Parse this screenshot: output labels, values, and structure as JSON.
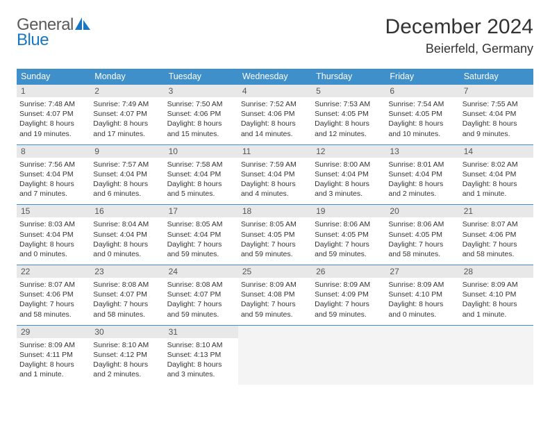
{
  "logo": {
    "general": "General",
    "blue": "Blue"
  },
  "title": "December 2024",
  "location": "Beierfeld, Germany",
  "colors": {
    "header_bg": "#3f8fcb",
    "header_text": "#ffffff",
    "daynum_bg": "#e8e8e8",
    "row_border": "#3f8fcb",
    "empty_bg": "#f4f4f4",
    "text": "#333333",
    "logo_gray": "#5a5a5a",
    "logo_blue": "#1976c4"
  },
  "weekdays": [
    "Sunday",
    "Monday",
    "Tuesday",
    "Wednesday",
    "Thursday",
    "Friday",
    "Saturday"
  ],
  "weeks": [
    [
      {
        "n": "1",
        "sr": "Sunrise: 7:48 AM",
        "ss": "Sunset: 4:07 PM",
        "dl": "Daylight: 8 hours and 19 minutes."
      },
      {
        "n": "2",
        "sr": "Sunrise: 7:49 AM",
        "ss": "Sunset: 4:07 PM",
        "dl": "Daylight: 8 hours and 17 minutes."
      },
      {
        "n": "3",
        "sr": "Sunrise: 7:50 AM",
        "ss": "Sunset: 4:06 PM",
        "dl": "Daylight: 8 hours and 15 minutes."
      },
      {
        "n": "4",
        "sr": "Sunrise: 7:52 AM",
        "ss": "Sunset: 4:06 PM",
        "dl": "Daylight: 8 hours and 14 minutes."
      },
      {
        "n": "5",
        "sr": "Sunrise: 7:53 AM",
        "ss": "Sunset: 4:05 PM",
        "dl": "Daylight: 8 hours and 12 minutes."
      },
      {
        "n": "6",
        "sr": "Sunrise: 7:54 AM",
        "ss": "Sunset: 4:05 PM",
        "dl": "Daylight: 8 hours and 10 minutes."
      },
      {
        "n": "7",
        "sr": "Sunrise: 7:55 AM",
        "ss": "Sunset: 4:04 PM",
        "dl": "Daylight: 8 hours and 9 minutes."
      }
    ],
    [
      {
        "n": "8",
        "sr": "Sunrise: 7:56 AM",
        "ss": "Sunset: 4:04 PM",
        "dl": "Daylight: 8 hours and 7 minutes."
      },
      {
        "n": "9",
        "sr": "Sunrise: 7:57 AM",
        "ss": "Sunset: 4:04 PM",
        "dl": "Daylight: 8 hours and 6 minutes."
      },
      {
        "n": "10",
        "sr": "Sunrise: 7:58 AM",
        "ss": "Sunset: 4:04 PM",
        "dl": "Daylight: 8 hours and 5 minutes."
      },
      {
        "n": "11",
        "sr": "Sunrise: 7:59 AM",
        "ss": "Sunset: 4:04 PM",
        "dl": "Daylight: 8 hours and 4 minutes."
      },
      {
        "n": "12",
        "sr": "Sunrise: 8:00 AM",
        "ss": "Sunset: 4:04 PM",
        "dl": "Daylight: 8 hours and 3 minutes."
      },
      {
        "n": "13",
        "sr": "Sunrise: 8:01 AM",
        "ss": "Sunset: 4:04 PM",
        "dl": "Daylight: 8 hours and 2 minutes."
      },
      {
        "n": "14",
        "sr": "Sunrise: 8:02 AM",
        "ss": "Sunset: 4:04 PM",
        "dl": "Daylight: 8 hours and 1 minute."
      }
    ],
    [
      {
        "n": "15",
        "sr": "Sunrise: 8:03 AM",
        "ss": "Sunset: 4:04 PM",
        "dl": "Daylight: 8 hours and 0 minutes."
      },
      {
        "n": "16",
        "sr": "Sunrise: 8:04 AM",
        "ss": "Sunset: 4:04 PM",
        "dl": "Daylight: 8 hours and 0 minutes."
      },
      {
        "n": "17",
        "sr": "Sunrise: 8:05 AM",
        "ss": "Sunset: 4:04 PM",
        "dl": "Daylight: 7 hours and 59 minutes."
      },
      {
        "n": "18",
        "sr": "Sunrise: 8:05 AM",
        "ss": "Sunset: 4:05 PM",
        "dl": "Daylight: 7 hours and 59 minutes."
      },
      {
        "n": "19",
        "sr": "Sunrise: 8:06 AM",
        "ss": "Sunset: 4:05 PM",
        "dl": "Daylight: 7 hours and 59 minutes."
      },
      {
        "n": "20",
        "sr": "Sunrise: 8:06 AM",
        "ss": "Sunset: 4:05 PM",
        "dl": "Daylight: 7 hours and 58 minutes."
      },
      {
        "n": "21",
        "sr": "Sunrise: 8:07 AM",
        "ss": "Sunset: 4:06 PM",
        "dl": "Daylight: 7 hours and 58 minutes."
      }
    ],
    [
      {
        "n": "22",
        "sr": "Sunrise: 8:07 AM",
        "ss": "Sunset: 4:06 PM",
        "dl": "Daylight: 7 hours and 58 minutes."
      },
      {
        "n": "23",
        "sr": "Sunrise: 8:08 AM",
        "ss": "Sunset: 4:07 PM",
        "dl": "Daylight: 7 hours and 58 minutes."
      },
      {
        "n": "24",
        "sr": "Sunrise: 8:08 AM",
        "ss": "Sunset: 4:07 PM",
        "dl": "Daylight: 7 hours and 59 minutes."
      },
      {
        "n": "25",
        "sr": "Sunrise: 8:09 AM",
        "ss": "Sunset: 4:08 PM",
        "dl": "Daylight: 7 hours and 59 minutes."
      },
      {
        "n": "26",
        "sr": "Sunrise: 8:09 AM",
        "ss": "Sunset: 4:09 PM",
        "dl": "Daylight: 7 hours and 59 minutes."
      },
      {
        "n": "27",
        "sr": "Sunrise: 8:09 AM",
        "ss": "Sunset: 4:10 PM",
        "dl": "Daylight: 8 hours and 0 minutes."
      },
      {
        "n": "28",
        "sr": "Sunrise: 8:09 AM",
        "ss": "Sunset: 4:10 PM",
        "dl": "Daylight: 8 hours and 1 minute."
      }
    ],
    [
      {
        "n": "29",
        "sr": "Sunrise: 8:09 AM",
        "ss": "Sunset: 4:11 PM",
        "dl": "Daylight: 8 hours and 1 minute."
      },
      {
        "n": "30",
        "sr": "Sunrise: 8:10 AM",
        "ss": "Sunset: 4:12 PM",
        "dl": "Daylight: 8 hours and 2 minutes."
      },
      {
        "n": "31",
        "sr": "Sunrise: 8:10 AM",
        "ss": "Sunset: 4:13 PM",
        "dl": "Daylight: 8 hours and 3 minutes."
      },
      {
        "empty": true
      },
      {
        "empty": true
      },
      {
        "empty": true
      },
      {
        "empty": true
      }
    ]
  ]
}
